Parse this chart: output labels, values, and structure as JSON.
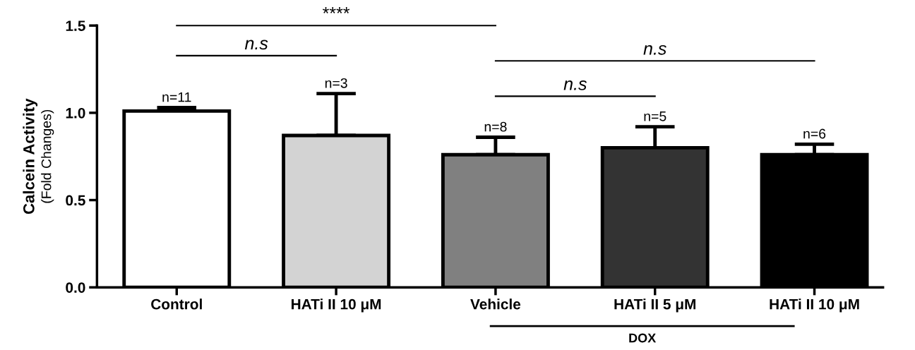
{
  "chart_data": {
    "type": "bar",
    "ylabel": "Calcein Activity",
    "subtitle": "(Fold Changes)",
    "categories": [
      "Control",
      "HATi II 10 μM",
      "Vehicle",
      "HATi II 5 μM",
      "HATi II 10 μM"
    ],
    "values": [
      1.01,
      0.87,
      0.76,
      0.8,
      0.76
    ],
    "colors": [
      "#ffffff",
      "#d3d3d3",
      "#808080",
      "#333333",
      "#000000"
    ],
    "errors": [
      [
        1.01,
        1.03
      ],
      [
        0.87,
        1.11
      ],
      [
        0.76,
        0.86
      ],
      [
        0.8,
        0.92
      ],
      [
        0.76,
        0.82
      ]
    ],
    "ylim": [
      0,
      1.5
    ],
    "yticks": [
      {
        "value": 0,
        "label": "0.0"
      },
      {
        "value": 0.5,
        "label": "0.5"
      },
      {
        "value": 1,
        "label": "1.0"
      },
      {
        "value": 1.5,
        "label": "1.5"
      }
    ],
    "grid": false,
    "legend": false,
    "annotations": [
      "n=11",
      "n=3",
      "n=8",
      "n=5",
      "n=6",
      "****",
      "n.s",
      "n.s",
      "n.s",
      "DOX"
    ]
  }
}
